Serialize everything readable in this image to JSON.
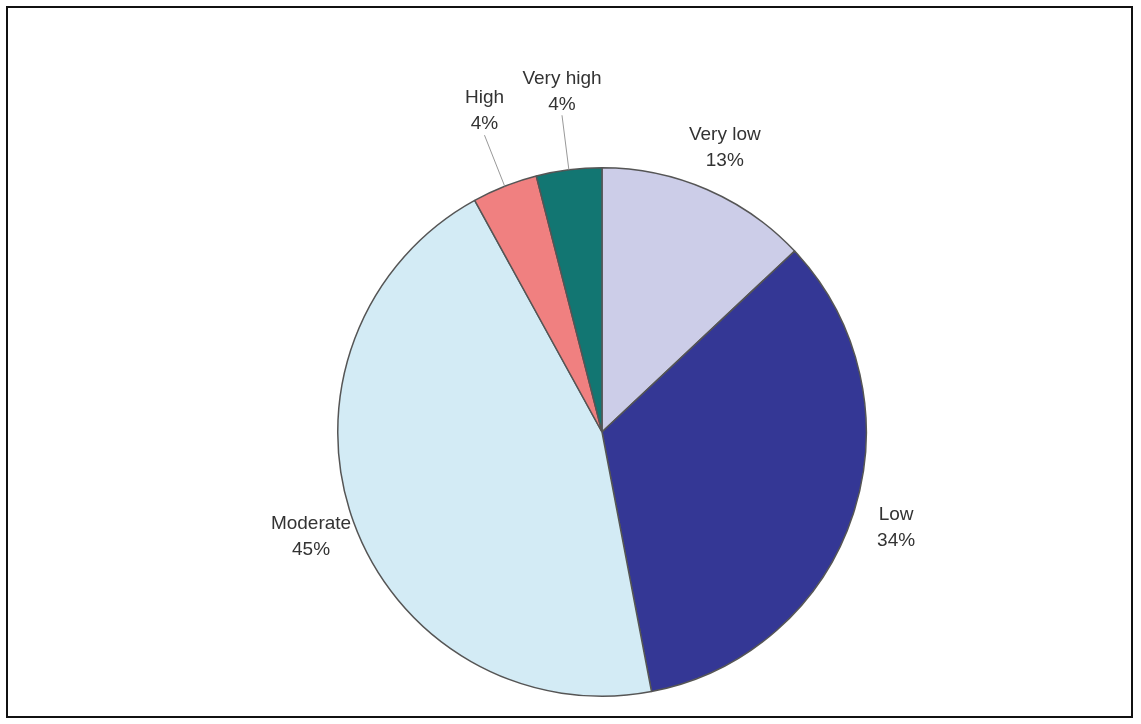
{
  "chart_data": {
    "type": "pie",
    "categories": [
      "Very low",
      "Low",
      "Moderate",
      "High",
      "Very high"
    ],
    "values": [
      13,
      34,
      45,
      4,
      4
    ],
    "value_labels": [
      "13%",
      "34%",
      "45%",
      "4%",
      "4%"
    ],
    "colors": [
      "#cccde8",
      "#343795",
      "#d3ebf5",
      "#f08080",
      "#127672"
    ]
  }
}
